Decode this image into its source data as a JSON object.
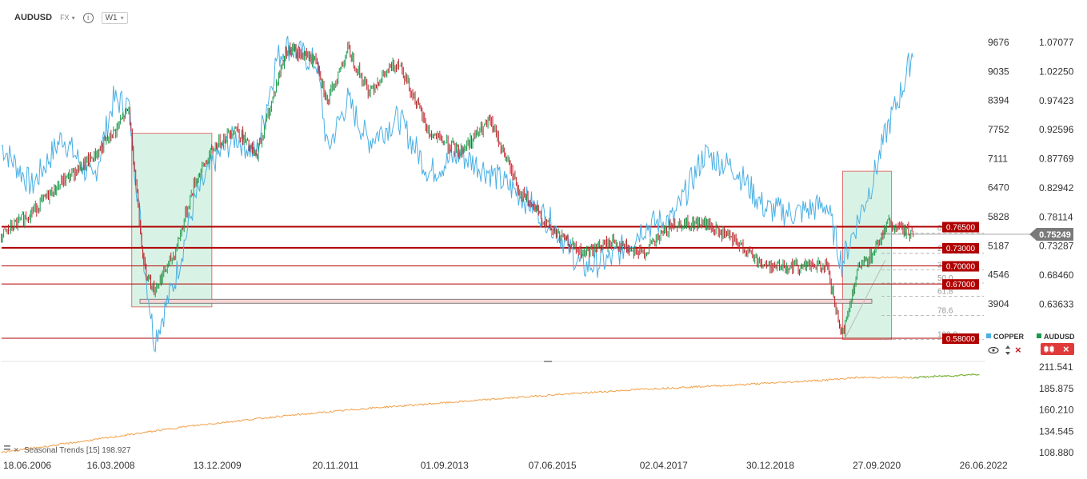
{
  "toolbar": {
    "symbol": "AUDUSD",
    "market_type": "FX",
    "interval": "W1"
  },
  "colors": {
    "copper": "#4ab0e4",
    "audusd_up": "#1a9a4a",
    "audusd_down": "#c0202a",
    "level_line": "#b00000",
    "highlight_fill": "#d8f3e5",
    "highlight_stroke": "#e07070",
    "seasonal_orange": "#f2a14a",
    "seasonal_green": "#7cb23a"
  },
  "chart_data": [
    {
      "type": "line",
      "title": "",
      "x_tick_labels": [
        "18.06.2006",
        "16.03.2008",
        "13.12.2009",
        "20.11.2011",
        "01.09.2013",
        "07.06.2015",
        "02.04.2017",
        "30.12.2018",
        "27.09.2020",
        "26.06.2022"
      ],
      "y_left_ticks": [
        "9676",
        "9035",
        "8394",
        "7752",
        "7111",
        "6470",
        "5828",
        "5187",
        "4546",
        "3904"
      ],
      "y_right_ticks": [
        "1.07077",
        "1.02250",
        "0.97423",
        "0.92596",
        "0.87769",
        "0.82942",
        "0.78114",
        "0.73287",
        "0.68460",
        "0.63633"
      ],
      "ylim_right": [
        0.58,
        1.07077
      ],
      "ylim_left": [
        3904,
        9676
      ],
      "current_price": "0.75249",
      "legend": [
        {
          "name": "COPPER",
          "color": "#4ab0e4"
        },
        {
          "name": "AUDUSD",
          "color": "#1a9a4a"
        }
      ],
      "series": [
        {
          "name": "COPPER",
          "dates": [
            "2006-06",
            "2006-12",
            "2007-06",
            "2007-12",
            "2008-04",
            "2008-07",
            "2008-10",
            "2008-12",
            "2009-04",
            "2009-08",
            "2009-12",
            "2010-04",
            "2010-08",
            "2010-12",
            "2011-02",
            "2011-08",
            "2011-10",
            "2012-02",
            "2012-06",
            "2012-12",
            "2013-06",
            "2013-12",
            "2014-06",
            "2014-12",
            "2015-06",
            "2015-12",
            "2016-06",
            "2016-12",
            "2017-06",
            "2017-12",
            "2018-06",
            "2018-12",
            "2019-06",
            "2019-12",
            "2020-03",
            "2020-06",
            "2020-09",
            "2020-12",
            "2021-03",
            "2021-05"
          ],
          "values": [
            7400,
            6500,
            7600,
            6600,
            8400,
            8300,
            4900,
            3100,
            4400,
            6200,
            7100,
            7600,
            7200,
            9300,
            9600,
            9200,
            7300,
            8400,
            7500,
            8000,
            6800,
            7200,
            6800,
            6300,
            5700,
            4700,
            4900,
            5600,
            5800,
            7200,
            6900,
            6000,
            5900,
            6100,
            4800,
            5700,
            6600,
            7800,
            8700,
            9500
          ]
        },
        {
          "name": "AUDUSD",
          "dates": [
            "2006-06",
            "2006-12",
            "2007-06",
            "2007-12",
            "2008-04",
            "2008-07",
            "2008-10",
            "2008-12",
            "2009-04",
            "2009-08",
            "2009-12",
            "2010-04",
            "2010-08",
            "2010-12",
            "2011-02",
            "2011-08",
            "2011-10",
            "2012-02",
            "2012-06",
            "2012-12",
            "2013-06",
            "2013-12",
            "2014-06",
            "2014-12",
            "2015-06",
            "2015-12",
            "2016-06",
            "2016-12",
            "2017-06",
            "2017-12",
            "2018-06",
            "2018-12",
            "2019-06",
            "2019-12",
            "2020-03",
            "2020-06",
            "2020-09",
            "2020-12",
            "2021-03",
            "2021-05"
          ],
          "values": [
            0.75,
            0.79,
            0.84,
            0.88,
            0.92,
            0.96,
            0.7,
            0.66,
            0.72,
            0.84,
            0.9,
            0.93,
            0.88,
            1.0,
            1.06,
            1.04,
            0.97,
            1.06,
            0.99,
            1.04,
            0.92,
            0.89,
            0.94,
            0.82,
            0.76,
            0.72,
            0.74,
            0.72,
            0.77,
            0.77,
            0.74,
            0.7,
            0.7,
            0.7,
            0.58,
            0.69,
            0.72,
            0.77,
            0.76,
            0.75249
          ]
        }
      ],
      "levels": [
        {
          "label": "0.76500",
          "value": 0.765
        },
        {
          "label": "0.73000",
          "value": 0.73
        },
        {
          "label": "0.70000",
          "value": 0.7
        },
        {
          "label": "0.67000",
          "value": 0.67
        },
        {
          "label": "0.58000",
          "value": 0.58
        }
      ],
      "fibonacci": [
        "0.0",
        "23.6",
        "38.2",
        "50.0",
        "61.8",
        "78.6",
        "100.0"
      ]
    },
    {
      "type": "line",
      "title": "Seasonal  Trends  [15]  198.927",
      "y_ticks": [
        "211.541",
        "185.875",
        "160.210",
        "134.545",
        "108.880"
      ],
      "ylim": [
        108.88,
        211.541
      ],
      "series": [
        {
          "name": "Seasonal Trends",
          "dates": [
            "2006-06",
            "2008-01",
            "2009-06",
            "2010-12",
            "2012-06",
            "2013-12",
            "2015-06",
            "2016-12",
            "2018-06",
            "2019-12",
            "2020-06",
            "2021-05"
          ],
          "values": [
            108.9,
            125,
            140,
            152,
            162,
            170,
            178,
            185,
            190,
            196,
            199,
            198.9
          ]
        },
        {
          "name": "Seasonal Trends (projection)",
          "dates": [
            "2021-05",
            "2021-12",
            "2022-06"
          ],
          "values": [
            198.9,
            201,
            203
          ]
        }
      ]
    }
  ]
}
